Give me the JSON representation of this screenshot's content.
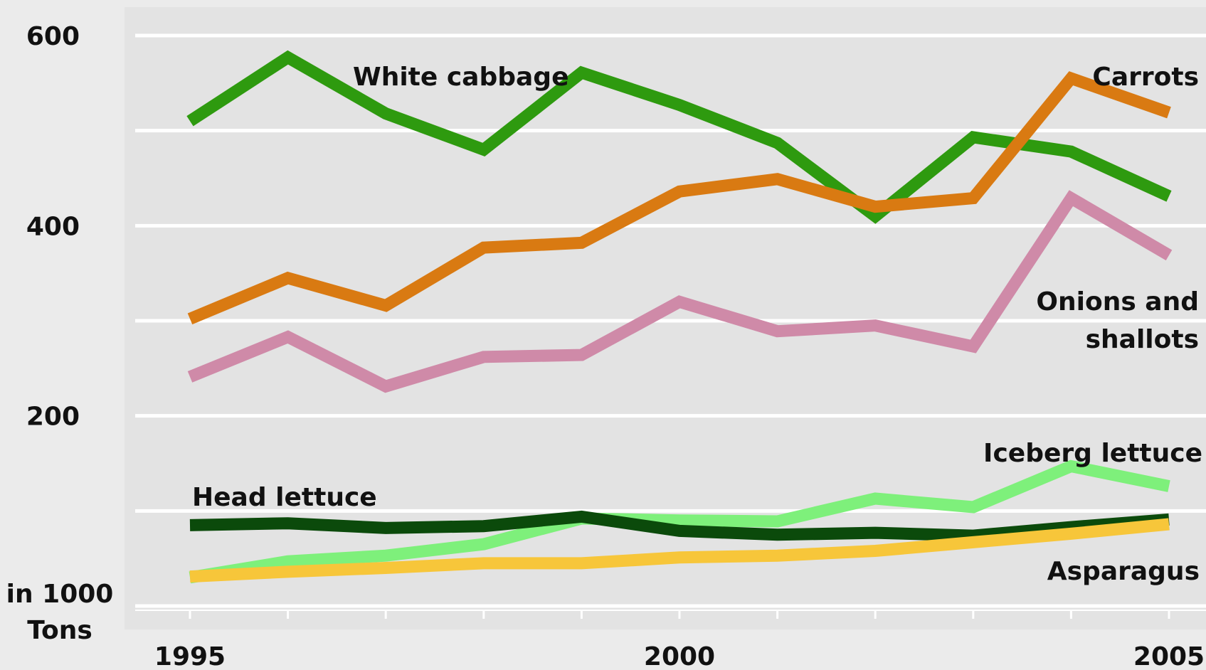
{
  "chart_data": {
    "type": "line",
    "x": [
      1995,
      1996,
      1997,
      1998,
      1999,
      2000,
      2001,
      2002,
      2003,
      2004,
      2005
    ],
    "xlim": [
      1995,
      2005
    ],
    "ylim": [
      0,
      600
    ],
    "y_ticks": [
      200,
      400,
      600
    ],
    "gridlines": [
      0,
      100,
      200,
      300,
      400,
      500,
      600
    ],
    "x_tick_labels": [
      "1995",
      "2000",
      "2005"
    ],
    "unit_label_line1": "in 1000",
    "unit_label_line2": "Tons",
    "grid": true,
    "series": [
      {
        "key": "white_cabbage",
        "name": "White cabbage",
        "color": "#2e9a0f",
        "values": [
          510,
          577,
          518,
          480,
          561,
          527,
          487,
          410,
          493,
          478,
          431
        ]
      },
      {
        "key": "carrots",
        "name": "Carrots",
        "color": "#d97a12",
        "values": [
          302,
          345,
          316,
          377,
          382,
          436,
          449,
          420,
          429,
          555,
          519
        ]
      },
      {
        "key": "onions",
        "name_line1": "Onions and",
        "name_line2": "shallots",
        "color": "#cf8aa8",
        "values": [
          241,
          283,
          231,
          262,
          264,
          320,
          289,
          295,
          273,
          429,
          369
        ]
      },
      {
        "key": "iceberg",
        "name": "Iceberg lettuce",
        "color": "#7ef07b",
        "values": [
          30,
          47,
          53,
          65,
          92,
          90,
          89,
          113,
          104,
          147,
          126
        ]
      },
      {
        "key": "head_lettuce",
        "name": "Head lettuce",
        "color": "#0b4a0b",
        "values": [
          85,
          87,
          82,
          84,
          94,
          79,
          75,
          77,
          74,
          83,
          91
        ]
      },
      {
        "key": "asparagus",
        "name": "Asparagus",
        "color": "#f7c63a",
        "values": [
          31,
          36,
          40,
          45,
          45,
          51,
          53,
          58,
          67,
          76,
          86
        ]
      }
    ],
    "labels": {
      "white_cabbage": "White cabbage",
      "carrots": "Carrots",
      "onions_line1": "Onions and",
      "onions_line2": "shallots",
      "iceberg": "Iceberg lettuce",
      "head_lettuce": "Head lettuce",
      "asparagus": "Asparagus"
    }
  }
}
